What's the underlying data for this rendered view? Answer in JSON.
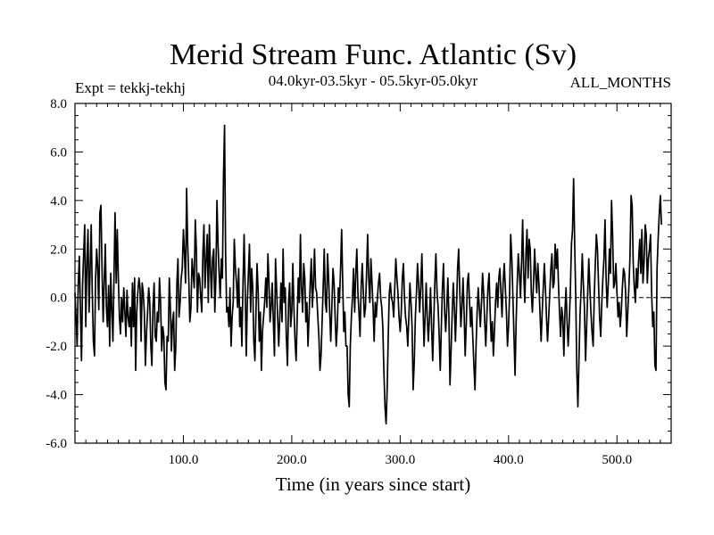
{
  "chart_data": {
    "type": "line",
    "title": "Merid Stream Func. Atlantic (Sv)",
    "subtitle_left": "Expt = tekkj-tekhj",
    "subtitle_center": "04.0kyr-03.5kyr - 05.5kyr-05.0kyr",
    "subtitle_right": "ALL_MONTHS",
    "xlabel": "Time (in years since start)",
    "ylabel": "",
    "xlim": [
      0,
      550
    ],
    "ylim": [
      -6,
      8
    ],
    "x_ticks": [
      100,
      200,
      300,
      400,
      500
    ],
    "x_tick_labels": [
      "100.0",
      "200.0",
      "300.0",
      "400.0",
      "500.0"
    ],
    "y_ticks": [
      -6,
      -4,
      -2,
      0,
      2,
      4,
      6,
      8
    ],
    "y_tick_labels": [
      "-6.0",
      "-4.0",
      "-2.0",
      "0.0",
      "2.0",
      "4.0",
      "6.0",
      "8.0"
    ],
    "zero_line": true,
    "series": [
      {
        "name": "Merid Stream Func.",
        "x_start": 0,
        "x_step": 1,
        "values": [
          0.2,
          -0.8,
          -2.0,
          0.5,
          1.7,
          -0.5,
          -2.6,
          0.5,
          1.8,
          3.0,
          -1.2,
          1.5,
          2.8,
          -0.6,
          1.2,
          3.0,
          0.2,
          -1.8,
          -2.4,
          0.8,
          2.0,
          1.2,
          -0.5,
          3.5,
          3.8,
          1.0,
          -1.0,
          0.7,
          2.2,
          -0.4,
          -1.2,
          0.5,
          -2.0,
          1.0,
          -0.5,
          -1.8,
          0.8,
          3.5,
          0.6,
          2.8,
          0.8,
          -0.8,
          -1.5,
          0.0,
          -1.0,
          0.4,
          -0.6,
          -1.6,
          0.3,
          -0.8,
          -1.2,
          -0.4,
          -2.0,
          0.6,
          -1.2,
          0.8,
          -3.0,
          -0.6,
          0.2,
          0.8,
          0.4,
          -1.8,
          0.6,
          0.2,
          -0.6,
          -2.8,
          -1.4,
          -0.6,
          0.4,
          -0.2,
          -2.0,
          -2.8,
          -0.4,
          0.6,
          -1.6,
          -1.8,
          -0.6,
          -1.0,
          0.8,
          -0.2,
          -2.2,
          -1.2,
          -1.6,
          -3.5,
          -3.8,
          -1.6,
          -1.8,
          0.8,
          -0.4,
          -2.2,
          -1.0,
          -0.6,
          -3.0,
          -2.0,
          0.6,
          1.6,
          -0.8,
          -0.2,
          0.8,
          1.2,
          2.8,
          1.8,
          0.6,
          4.5,
          2.2,
          0.8,
          -1.0,
          -0.4,
          1.6,
          1.0,
          0.4,
          3.2,
          2.0,
          -0.6,
          1.0,
          0.8,
          0.0,
          -0.6,
          1.8,
          3.0,
          0.4,
          1.6,
          2.6,
          -0.2,
          3.0,
          1.2,
          0.0,
          1.6,
          2.0,
          -0.6,
          0.8,
          4.0,
          2.2,
          1.0,
          0.0,
          1.6,
          0.8,
          5.0,
          7.1,
          1.8,
          -0.6,
          -0.4,
          -1.2,
          0.4,
          -2.0,
          -0.8,
          -0.2,
          2.4,
          1.2,
          0.6,
          -0.4,
          1.2,
          -1.2,
          -0.4,
          -2.0,
          0.6,
          2.6,
          0.4,
          -2.4,
          -0.2,
          1.0,
          2.2,
          -0.6,
          1.2,
          0.4,
          -1.8,
          -2.6,
          -0.6,
          1.4,
          0.2,
          -1.8,
          -0.6,
          -3.0,
          -1.4,
          -0.8,
          -0.2,
          0.8,
          -0.4,
          1.8,
          0.6,
          -1.0,
          -0.4,
          0.6,
          -1.0,
          -2.4,
          1.6,
          0.4,
          -0.8,
          -2.0,
          -0.8,
          0.6,
          -1.0,
          2.0,
          -0.2,
          0.4,
          -1.6,
          -2.8,
          -0.2,
          0.6,
          -1.2,
          -0.6,
          1.4,
          -0.4,
          -1.8,
          -2.6,
          -0.8,
          0.8,
          -0.2,
          2.6,
          0.4,
          -0.6,
          1.4,
          0.8,
          -1.0,
          -0.2,
          -2.0,
          -0.8,
          0.6,
          1.6,
          -0.4,
          0.6,
          2.0,
          0.4,
          0.2,
          -0.8,
          -1.6,
          -3.0,
          -2.4,
          -1.0,
          0.4,
          2.0,
          -0.2,
          -0.6,
          1.8,
          0.8,
          -0.6,
          -1.8,
          -0.4,
          1.2,
          0.6,
          -0.8,
          -2.0,
          -1.2,
          0.4,
          -0.2,
          1.2,
          2.8,
          0.6,
          -1.4,
          -0.6,
          -2.0,
          -2.0,
          -4.0,
          -4.5,
          -2.0,
          -0.8,
          0.0,
          1.2,
          -0.6,
          1.0,
          2.0,
          0.2,
          -0.6,
          -1.6,
          0.4,
          1.4,
          0.2,
          -0.8,
          -0.4,
          1.0,
          2.6,
          0.8,
          -0.2,
          1.6,
          0.6,
          -0.4,
          -1.8,
          -0.2,
          -0.8,
          0.0,
          0.6,
          1.0,
          0.0,
          -0.4,
          -1.2,
          -3.0,
          -4.5,
          -5.2,
          -3.8,
          -1.6,
          0.2,
          0.6,
          0.0,
          -0.2,
          -0.8,
          0.4,
          1.6,
          0.8,
          0.2,
          -0.8,
          -1.4,
          -0.6,
          0.8,
          1.4,
          0.0,
          -0.8,
          -1.2,
          -2.0,
          -0.8,
          0.6,
          -0.2,
          -1.2,
          -3.8,
          -2.6,
          -0.8,
          0.2,
          1.4,
          0.6,
          -0.6,
          0.4,
          1.8,
          -0.2,
          -2.0,
          -0.8,
          0.6,
          -0.8,
          -1.8,
          -0.8,
          0.4,
          -1.2,
          -2.6,
          -1.0,
          0.6,
          1.8,
          0.2,
          -0.4,
          -1.6,
          -3.0,
          -1.2,
          0.4,
          1.4,
          -0.6,
          -1.4,
          -0.4,
          0.8,
          -0.8,
          -3.6,
          -2.2,
          -0.6,
          0.6,
          -0.4,
          -1.8,
          -0.4,
          1.2,
          2.0,
          0.2,
          -1.2,
          -0.4,
          0.8,
          -0.6,
          -2.4,
          -1.0,
          0.6,
          1.0,
          -0.2,
          -1.2,
          -0.4,
          -1.6,
          -2.8,
          -3.8,
          -2.0,
          -0.6,
          0.4,
          -0.4,
          -1.2,
          -0.2,
          1.0,
          0.2,
          -1.0,
          -2.0,
          -0.8,
          0.4,
          1.0,
          -0.6,
          -1.8,
          -1.0,
          -2.4,
          -1.4,
          -0.2,
          0.6,
          -0.4,
          0.8,
          1.2,
          0.2,
          -0.8,
          0.6,
          1.4,
          0.4,
          -0.6,
          -2.0,
          -1.2,
          0.2,
          2.6,
          1.6,
          0.0,
          -1.6,
          -3.2,
          -1.0,
          0.6,
          1.8,
          1.0,
          0.0,
          1.4,
          3.2,
          1.0,
          -0.2,
          1.8,
          2.8,
          0.8,
          2.4,
          2.0,
          0.2,
          -0.6,
          0.6,
          2.0,
          1.0,
          0.2,
          1.4,
          0.6,
          -0.6,
          -1.8,
          -0.6,
          0.4,
          1.4,
          0.4,
          -0.8,
          -1.8,
          -0.8,
          0.2,
          1.2,
          1.8,
          0.4,
          0.6,
          2.2,
          1.2,
          2.0,
          0.6,
          -0.6,
          -1.6,
          -0.4,
          -0.8,
          -2.4,
          -0.6,
          0.4,
          -1.0,
          -2.0,
          -1.0,
          0.2,
          2.2,
          2.8,
          4.9,
          2.2,
          0.0,
          -3.0,
          -4.5,
          -2.4,
          -0.6,
          0.4,
          1.8,
          0.6,
          -0.4,
          -2.6,
          -1.2,
          0.2,
          1.6,
          0.4,
          -0.6,
          -1.4,
          -2.0,
          0.0,
          1.4,
          2.6,
          2.0,
          0.6,
          -0.8,
          -1.6,
          -0.2,
          0.8,
          1.6,
          3.2,
          0.8,
          -0.4,
          0.6,
          2.0,
          1.0,
          4.0,
          2.6,
          0.4,
          0.6,
          1.4,
          0.2,
          -0.8,
          -0.2,
          -1.2,
          -0.6,
          0.4,
          1.2,
          1.0,
          0.2,
          -1.6,
          -0.6,
          0.4,
          1.6,
          4.2,
          3.8,
          1.4,
          0.4,
          -0.2,
          1.2,
          0.4,
          1.6,
          2.4,
          1.0,
          2.8,
          0.6,
          1.4,
          3.0,
          2.6,
          0.6,
          1.6,
          2.0,
          2.6,
          0.2,
          -1.2,
          -0.6,
          -2.8,
          -3.0,
          1.2,
          2.4,
          3.4,
          4.2,
          3.0
        ]
      }
    ]
  }
}
